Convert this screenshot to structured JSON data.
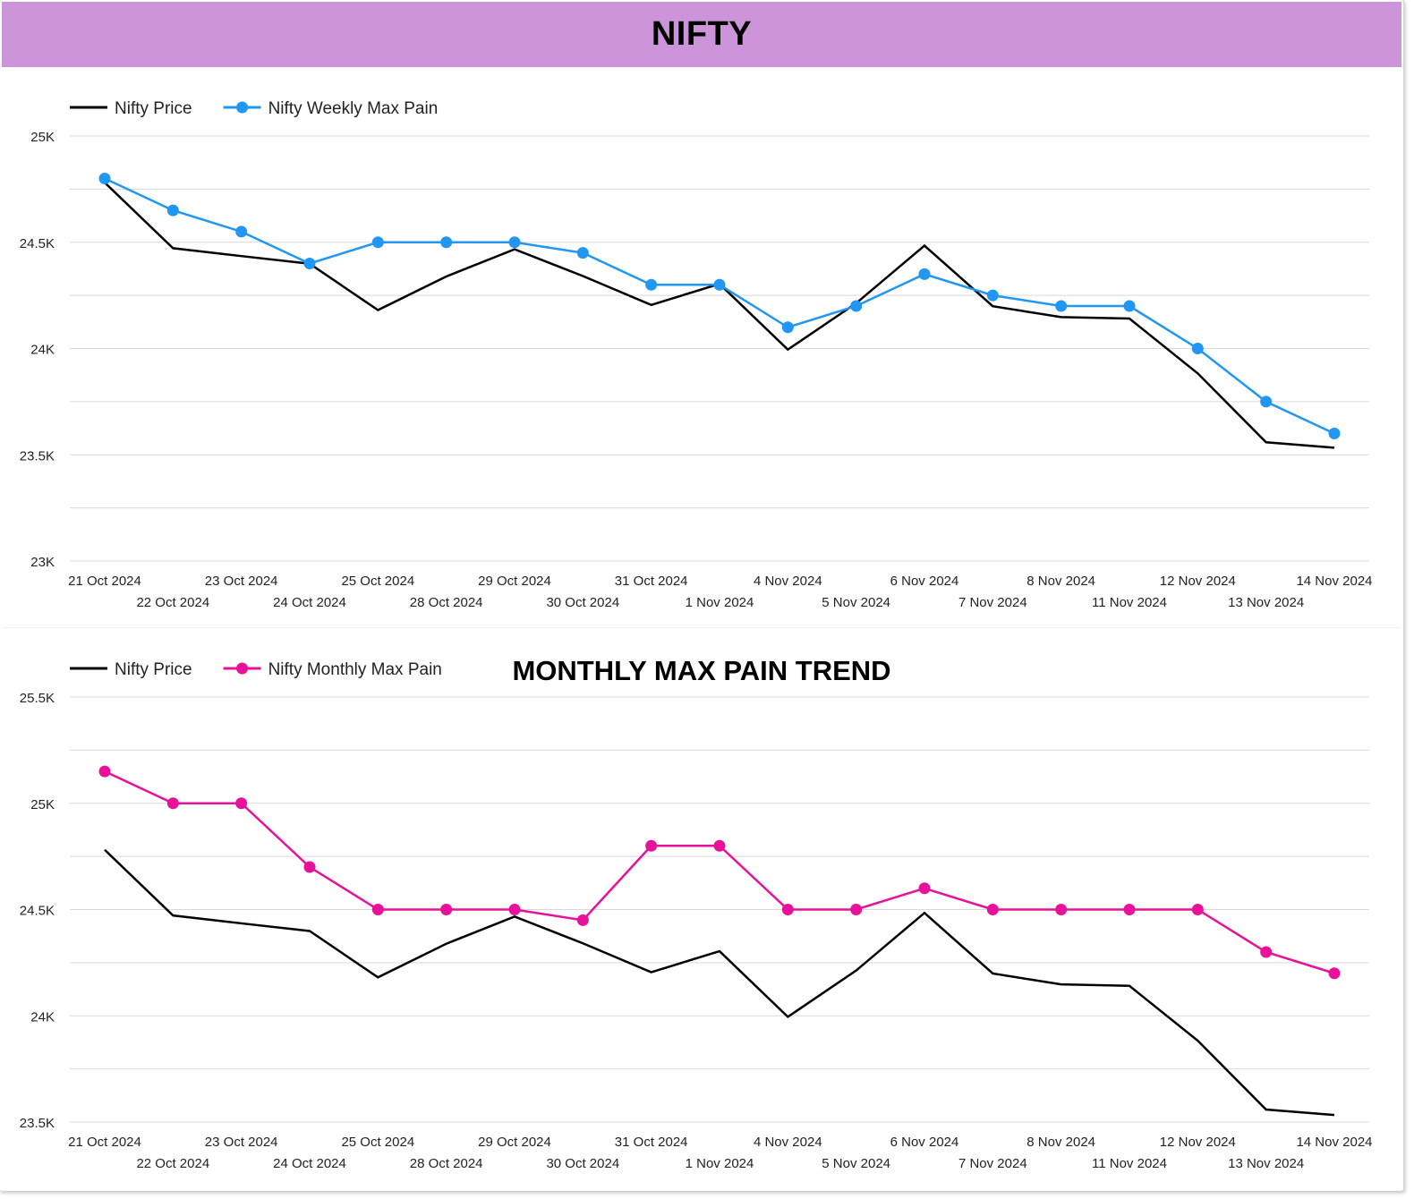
{
  "header": {
    "title": "NIFTY"
  },
  "chart_data": [
    {
      "type": "line",
      "title": "",
      "xlabel": "",
      "ylabel": "",
      "ylim": [
        23000,
        25000
      ],
      "y_ticks": [
        {
          "value": 23000,
          "label": "23K"
        },
        {
          "value": 23500,
          "label": "23.5K"
        },
        {
          "value": 24000,
          "label": "24K"
        },
        {
          "value": 24500,
          "label": "24.5K"
        },
        {
          "value": 25000,
          "label": "25K"
        }
      ],
      "grid": true,
      "legend_position": "top-left",
      "categories": [
        "21 Oct 2024",
        "22 Oct 2024",
        "23 Oct 2024",
        "24 Oct 2024",
        "25 Oct 2024",
        "28 Oct 2024",
        "29 Oct 2024",
        "30 Oct 2024",
        "31 Oct 2024",
        "1 Nov 2024",
        "4 Nov 2024",
        "5 Nov 2024",
        "6 Nov 2024",
        "7 Nov 2024",
        "8 Nov 2024",
        "11 Nov 2024",
        "12 Nov 2024",
        "13 Nov 2024",
        "14 Nov 2024"
      ],
      "series": [
        {
          "name": "Nifty Price",
          "color": "#000000",
          "markers": false,
          "values": [
            24781,
            24472,
            24435,
            24399,
            24181,
            24339,
            24467,
            24341,
            24205,
            24304,
            23995,
            24213,
            24484,
            24199,
            24148,
            24141,
            23883,
            23559,
            23533
          ]
        },
        {
          "name": "Nifty Weekly Max Pain",
          "color": "#2196f3",
          "markers": true,
          "values": [
            24800,
            24650,
            24550,
            24400,
            24500,
            24500,
            24500,
            24450,
            24300,
            24300,
            24100,
            24200,
            24350,
            24250,
            24200,
            24200,
            24000,
            23750,
            23600
          ]
        }
      ]
    },
    {
      "type": "line",
      "title": "MONTHLY MAX PAIN TREND",
      "xlabel": "",
      "ylabel": "",
      "ylim": [
        23500,
        25500
      ],
      "y_ticks": [
        {
          "value": 23500,
          "label": "23.5K"
        },
        {
          "value": 24000,
          "label": "24K"
        },
        {
          "value": 24500,
          "label": "24.5K"
        },
        {
          "value": 25000,
          "label": "25K"
        },
        {
          "value": 25500,
          "label": "25.5K"
        }
      ],
      "grid": true,
      "legend_position": "top-left",
      "categories": [
        "21 Oct 2024",
        "22 Oct 2024",
        "23 Oct 2024",
        "24 Oct 2024",
        "25 Oct 2024",
        "28 Oct 2024",
        "29 Oct 2024",
        "30 Oct 2024",
        "31 Oct 2024",
        "1 Nov 2024",
        "4 Nov 2024",
        "5 Nov 2024",
        "6 Nov 2024",
        "7 Nov 2024",
        "8 Nov 2024",
        "11 Nov 2024",
        "12 Nov 2024",
        "13 Nov 2024",
        "14 Nov 2024"
      ],
      "series": [
        {
          "name": "Nifty Price",
          "color": "#000000",
          "markers": false,
          "values": [
            24781,
            24472,
            24435,
            24399,
            24181,
            24339,
            24467,
            24341,
            24205,
            24304,
            23995,
            24213,
            24484,
            24199,
            24148,
            24141,
            23883,
            23559,
            23533
          ]
        },
        {
          "name": "Nifty Monthly Max Pain",
          "color": "#e8129a",
          "markers": true,
          "values": [
            25150,
            25000,
            25000,
            24700,
            24500,
            24500,
            24500,
            24450,
            24800,
            24800,
            24500,
            24500,
            24600,
            24500,
            24500,
            24500,
            24500,
            24300,
            24200
          ]
        }
      ]
    }
  ]
}
